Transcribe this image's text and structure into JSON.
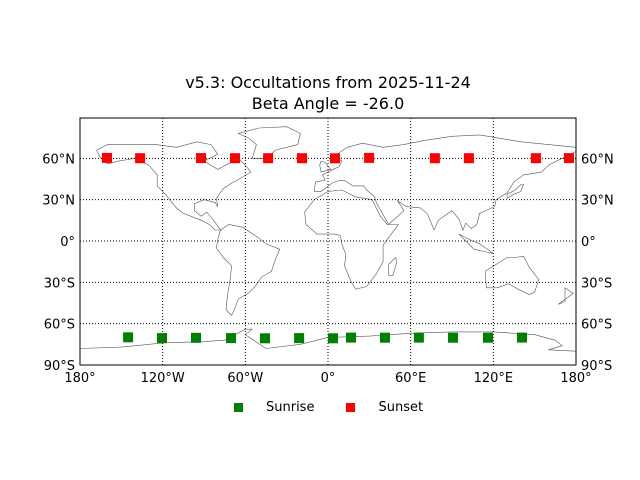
{
  "chart_data": {
    "type": "scatter",
    "title": "v5.3: Occultations from 2025-11-24",
    "subtitle": "Beta Angle = -26.0",
    "xlabel": "",
    "ylabel": "",
    "projection": "cylindrical world map (coastlines + country borders)",
    "xlim": [
      -180,
      180
    ],
    "ylim": [
      -90,
      90
    ],
    "grid": true,
    "grid_style": "dotted",
    "x_ticks": [
      -180,
      -120,
      -60,
      0,
      60,
      120,
      180
    ],
    "x_tick_labels": [
      "180°",
      "120°W",
      "60°W",
      "0°",
      "60°E",
      "120°E",
      "180°"
    ],
    "y_ticks": [
      60,
      30,
      0,
      -30,
      -60,
      -90
    ],
    "y_tick_labels": [
      "60°N",
      "30°N",
      "0°",
      "30°S",
      "60°S",
      "90°S"
    ],
    "legend_position": "bottom center",
    "series": [
      {
        "name": "Sunrise",
        "color": "#008000",
        "marker": "square",
        "lon": [
          -145.1,
          -120.5,
          -95.8,
          -70.4,
          -45.7,
          -21.0,
          3.6,
          16.7,
          41.4,
          66.0,
          90.7,
          116.1,
          140.8
        ],
        "lat": [
          -69.9,
          -70.5,
          -70.3,
          -70.5,
          -70.6,
          -70.5,
          -70.6,
          -70.1,
          -70.2,
          -70.1,
          -70.2,
          -70.2,
          -70.1
        ]
      },
      {
        "name": "Sunset",
        "color": "#ff0000",
        "marker": "square",
        "lon": [
          -160.4,
          -136.4,
          -92.2,
          -67.5,
          -43.5,
          -18.9,
          5.1,
          29.8,
          77.6,
          102.3,
          150.9,
          174.9
        ],
        "lat": [
          60.3,
          60.1,
          60.2,
          60.1,
          60.1,
          60.1,
          60.0,
          60.3,
          60.1,
          60.1,
          60.1,
          60.2
        ]
      }
    ]
  },
  "title_line1": "v5.3: Occultations from 2025-11-24",
  "title_line2": "Beta Angle = -26.0",
  "legend": {
    "items": [
      {
        "label": "Sunrise",
        "color": "#008000"
      },
      {
        "label": "Sunset",
        "color": "#ff0000"
      }
    ]
  }
}
